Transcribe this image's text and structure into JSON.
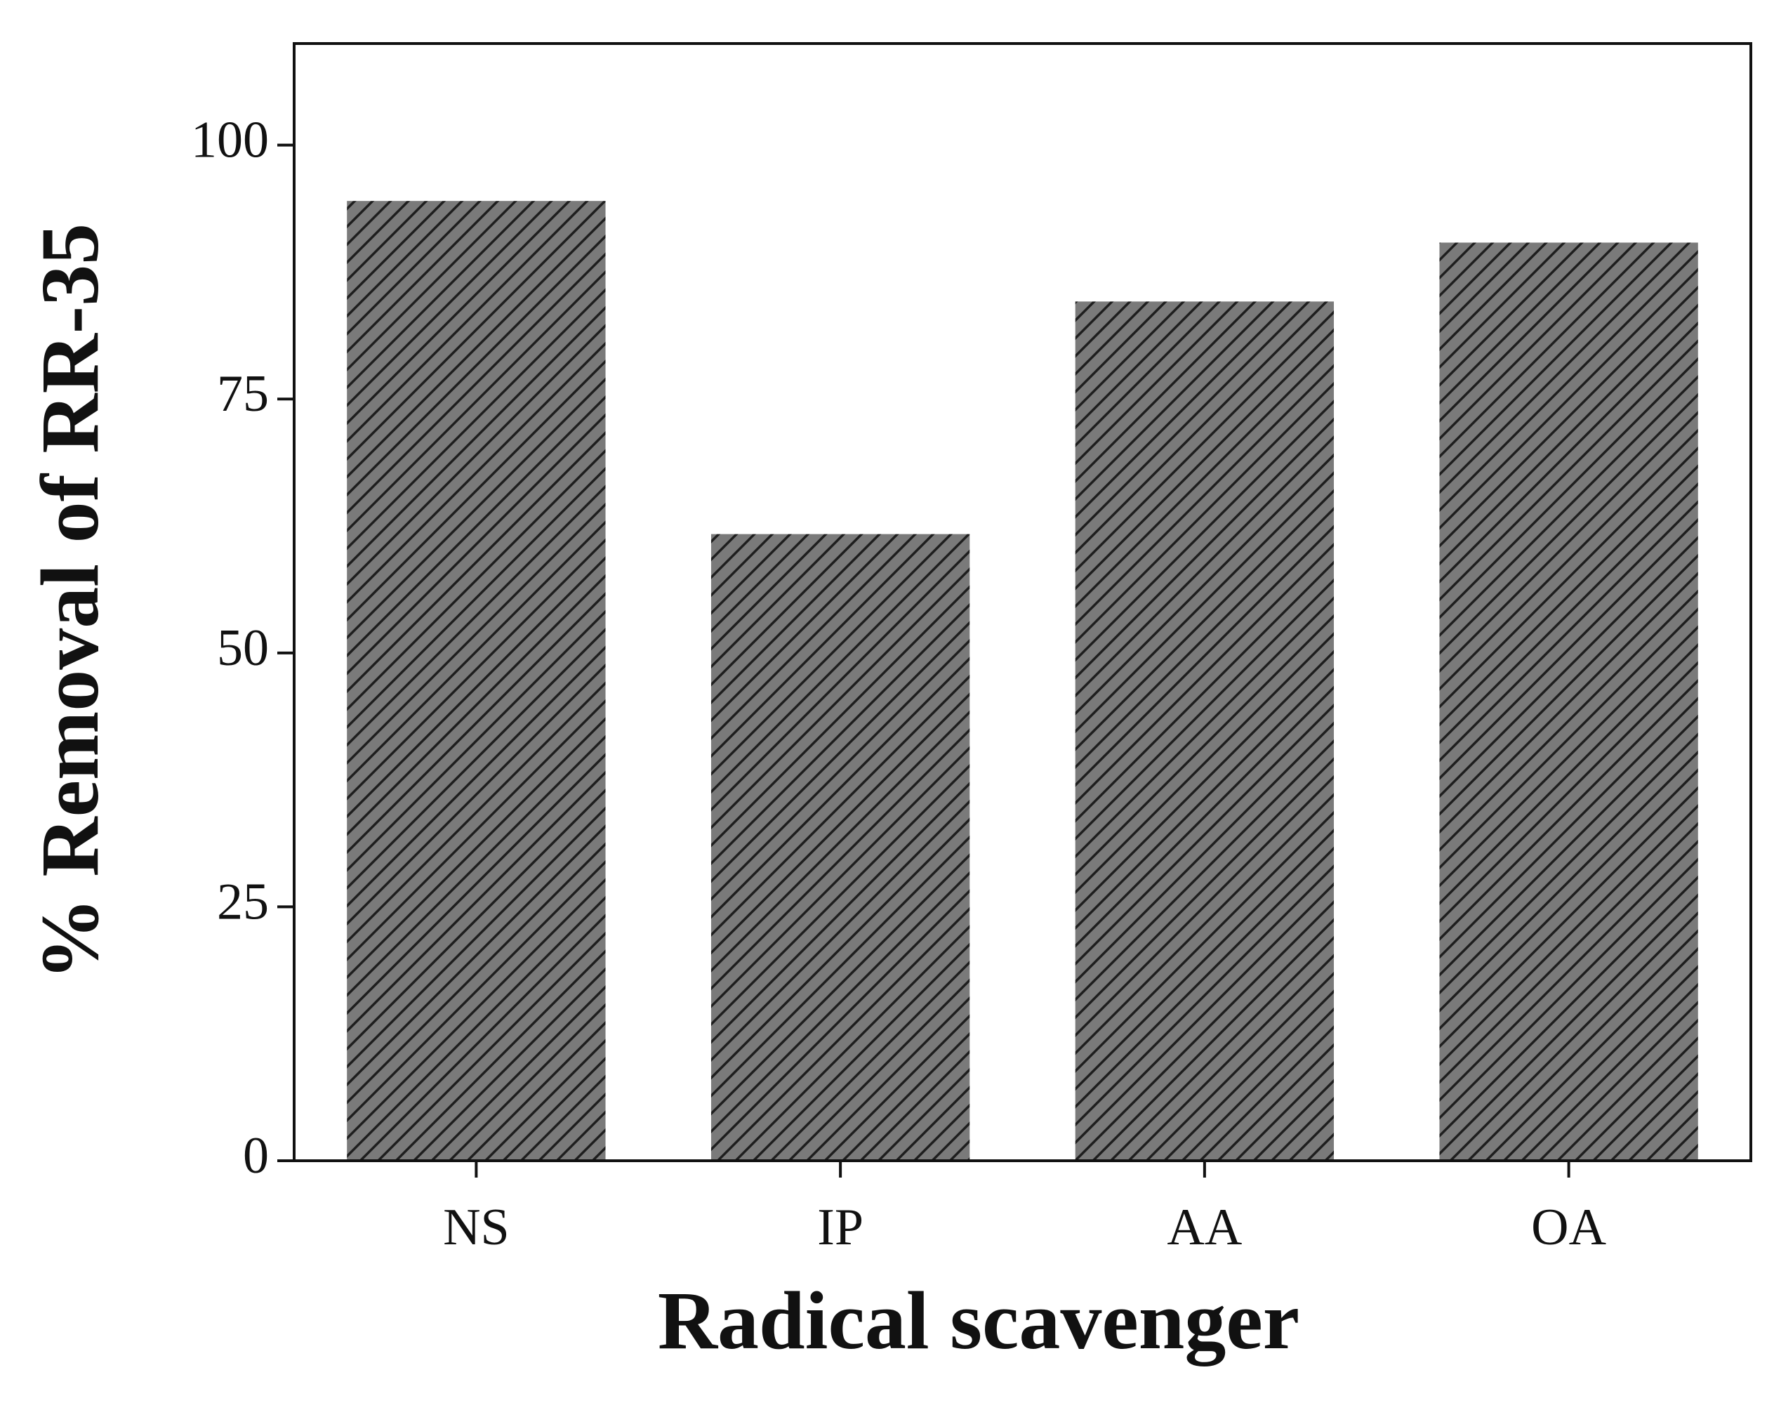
{
  "chart_data": {
    "type": "bar",
    "x_label": "Radical scavenger",
    "y_label": "% Removal of RR-35",
    "categories": [
      "NS",
      "IP",
      "AA",
      "OA"
    ],
    "values": [
      94.5,
      61.7,
      84.6,
      90.4
    ],
    "color": "#7a7a7a",
    "hatch_color": "#1e1e1e",
    "ylim": [
      0,
      110
    ],
    "yticks": [
      0,
      25,
      50,
      75,
      100
    ],
    "grid": false
  }
}
